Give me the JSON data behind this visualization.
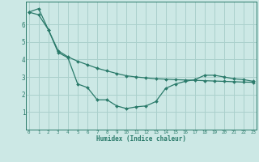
{
  "xlabel": "Humidex (Indice chaleur)",
  "background_color": "#cce8e5",
  "grid_color": "#aad0cc",
  "line_color": "#2a7a6a",
  "x_line1": [
    0,
    1,
    2,
    3,
    4,
    5,
    6,
    7,
    8,
    9,
    10,
    11,
    12,
    13,
    14,
    15,
    16,
    17,
    18,
    19,
    20,
    21,
    22,
    23
  ],
  "y_line1": [
    6.7,
    6.9,
    5.7,
    4.4,
    4.1,
    2.6,
    2.4,
    1.7,
    1.7,
    1.35,
    1.2,
    1.3,
    1.35,
    1.6,
    2.35,
    2.6,
    2.75,
    2.85,
    3.1,
    3.1,
    3.0,
    2.9,
    2.85,
    2.75
  ],
  "x_line2": [
    0,
    1,
    2,
    3,
    4,
    5,
    6,
    7,
    8,
    9,
    10,
    11,
    12,
    13,
    14,
    15,
    16,
    17,
    18,
    19,
    20,
    21,
    22,
    23
  ],
  "y_line2": [
    6.7,
    6.55,
    5.7,
    4.5,
    4.15,
    3.9,
    3.7,
    3.5,
    3.35,
    3.2,
    3.07,
    3.0,
    2.95,
    2.9,
    2.88,
    2.85,
    2.83,
    2.81,
    2.79,
    2.77,
    2.75,
    2.73,
    2.71,
    2.7
  ],
  "ylim": [
    0,
    7.3
  ],
  "xlim": [
    -0.3,
    23.3
  ],
  "yticks": [
    1,
    2,
    3,
    4,
    5,
    6
  ],
  "xticks": [
    0,
    1,
    2,
    3,
    4,
    5,
    6,
    7,
    8,
    9,
    10,
    11,
    12,
    13,
    14,
    15,
    16,
    17,
    18,
    19,
    20,
    21,
    22,
    23
  ]
}
